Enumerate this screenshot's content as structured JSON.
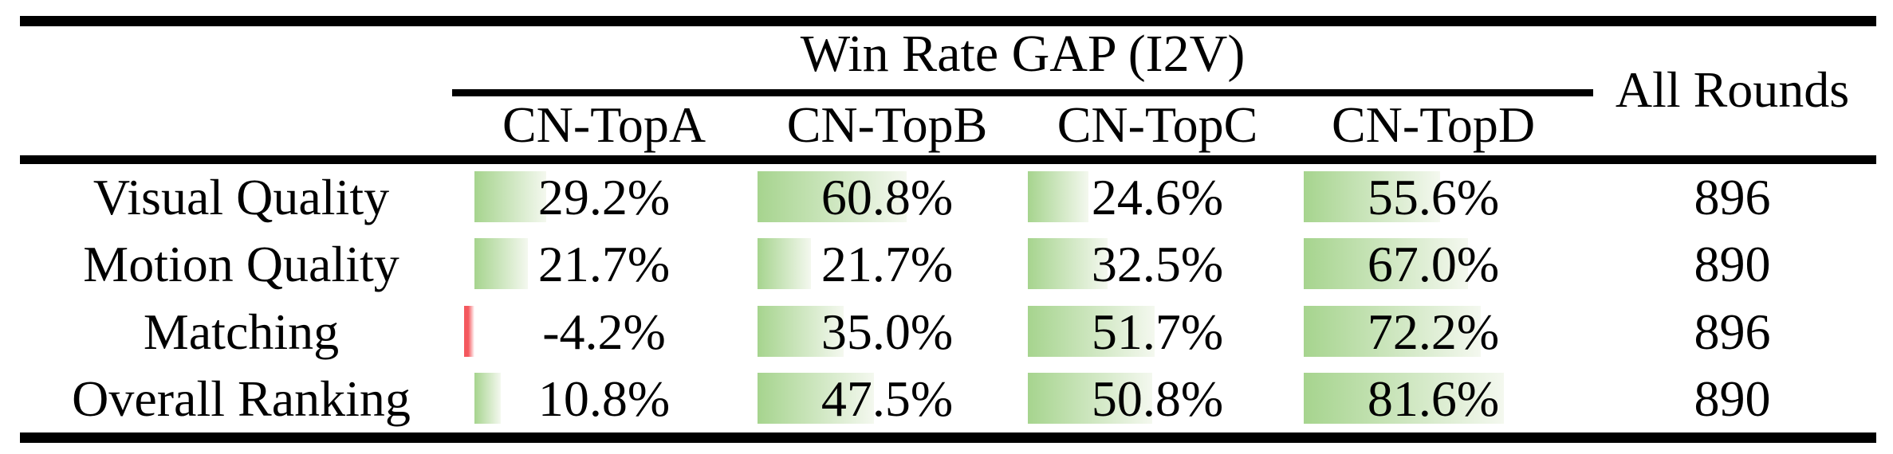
{
  "colors": {
    "bar_positive_start": "#a6d48e",
    "bar_positive_end": "#f4f8ef",
    "bar_negative": "#f4585e",
    "rule": "#000000",
    "page_bg": "#ffffff"
  },
  "table": {
    "group_header": "Win Rate GAP (I2V)",
    "all_rounds_header": "All Rounds",
    "column_headers": [
      "CN-TopA",
      "CN-TopB",
      "CN-TopC",
      "CN-TopD"
    ],
    "rows": [
      {
        "label": "Visual Quality",
        "cells": [
          {
            "text": "29.2%",
            "value": 29.2
          },
          {
            "text": "60.8%",
            "value": 60.8
          },
          {
            "text": "24.6%",
            "value": 24.6
          },
          {
            "text": "55.6%",
            "value": 55.6
          }
        ],
        "all_rounds": "896"
      },
      {
        "label": "Motion Quality",
        "cells": [
          {
            "text": "21.7%",
            "value": 21.7
          },
          {
            "text": "21.7%",
            "value": 21.7
          },
          {
            "text": "32.5%",
            "value": 32.5
          },
          {
            "text": "67.0%",
            "value": 67.0
          }
        ],
        "all_rounds": "890"
      },
      {
        "label": "Matching",
        "cells": [
          {
            "text": "-4.2%",
            "value": -4.2
          },
          {
            "text": "35.0%",
            "value": 35.0
          },
          {
            "text": "51.7%",
            "value": 51.7
          },
          {
            "text": "72.2%",
            "value": 72.2
          }
        ],
        "all_rounds": "896"
      },
      {
        "label": "Overall Ranking",
        "cells": [
          {
            "text": "10.8%",
            "value": 10.8
          },
          {
            "text": "47.5%",
            "value": 47.5
          },
          {
            "text": "50.8%",
            "value": 50.8
          },
          {
            "text": "81.6%",
            "value": 81.6
          }
        ],
        "all_rounds": "890"
      }
    ]
  },
  "chart_data": {
    "type": "table",
    "title": "Win Rate GAP (I2V)",
    "row_labels": [
      "Visual Quality",
      "Motion Quality",
      "Matching",
      "Overall Ranking"
    ],
    "column_labels": [
      "CN-TopA",
      "CN-TopB",
      "CN-TopC",
      "CN-TopD",
      "All Rounds"
    ],
    "values": [
      [
        29.2,
        60.8,
        24.6,
        55.6,
        896
      ],
      [
        21.7,
        21.7,
        32.5,
        67.0,
        890
      ],
      [
        -4.2,
        35.0,
        51.7,
        72.2,
        896
      ],
      [
        10.8,
        47.5,
        50.8,
        81.6,
        890
      ]
    ],
    "units": [
      "%",
      "%",
      "%",
      "%",
      "rounds"
    ],
    "bar_style": "in-cell gradient data bars, green for positive, red for negative, width proportional to percent"
  }
}
